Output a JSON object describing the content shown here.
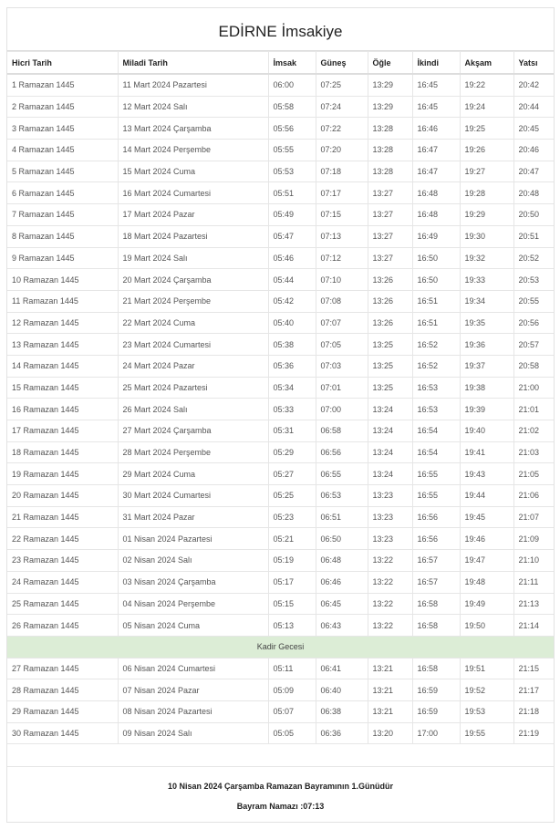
{
  "title": "EDİRNE İmsakiye",
  "columns": [
    "Hicri Tarih",
    "Miladi Tarih",
    "İmsak",
    "Güneş",
    "Öğle",
    "İkindi",
    "Akşam",
    "Yatsı"
  ],
  "rows": [
    [
      "1 Ramazan 1445",
      "11 Mart 2024 Pazartesi",
      "06:00",
      "07:25",
      "13:29",
      "16:45",
      "19:22",
      "20:42"
    ],
    [
      "2 Ramazan 1445",
      "12 Mart 2024 Salı",
      "05:58",
      "07:24",
      "13:29",
      "16:45",
      "19:24",
      "20:44"
    ],
    [
      "3 Ramazan 1445",
      "13 Mart 2024 Çarşamba",
      "05:56",
      "07:22",
      "13:28",
      "16:46",
      "19:25",
      "20:45"
    ],
    [
      "4 Ramazan 1445",
      "14 Mart 2024 Perşembe",
      "05:55",
      "07:20",
      "13:28",
      "16:47",
      "19:26",
      "20:46"
    ],
    [
      "5 Ramazan 1445",
      "15 Mart 2024 Cuma",
      "05:53",
      "07:18",
      "13:28",
      "16:47",
      "19:27",
      "20:47"
    ],
    [
      "6 Ramazan 1445",
      "16 Mart 2024 Cumartesi",
      "05:51",
      "07:17",
      "13:27",
      "16:48",
      "19:28",
      "20:48"
    ],
    [
      "7 Ramazan 1445",
      "17 Mart 2024 Pazar",
      "05:49",
      "07:15",
      "13:27",
      "16:48",
      "19:29",
      "20:50"
    ],
    [
      "8 Ramazan 1445",
      "18 Mart 2024 Pazartesi",
      "05:47",
      "07:13",
      "13:27",
      "16:49",
      "19:30",
      "20:51"
    ],
    [
      "9 Ramazan 1445",
      "19 Mart 2024 Salı",
      "05:46",
      "07:12",
      "13:27",
      "16:50",
      "19:32",
      "20:52"
    ],
    [
      "10 Ramazan 1445",
      "20 Mart 2024 Çarşamba",
      "05:44",
      "07:10",
      "13:26",
      "16:50",
      "19:33",
      "20:53"
    ],
    [
      "11 Ramazan 1445",
      "21 Mart 2024 Perşembe",
      "05:42",
      "07:08",
      "13:26",
      "16:51",
      "19:34",
      "20:55"
    ],
    [
      "12 Ramazan 1445",
      "22 Mart 2024 Cuma",
      "05:40",
      "07:07",
      "13:26",
      "16:51",
      "19:35",
      "20:56"
    ],
    [
      "13 Ramazan 1445",
      "23 Mart 2024 Cumartesi",
      "05:38",
      "07:05",
      "13:25",
      "16:52",
      "19:36",
      "20:57"
    ],
    [
      "14 Ramazan 1445",
      "24 Mart 2024 Pazar",
      "05:36",
      "07:03",
      "13:25",
      "16:52",
      "19:37",
      "20:58"
    ],
    [
      "15 Ramazan 1445",
      "25 Mart 2024 Pazartesi",
      "05:34",
      "07:01",
      "13:25",
      "16:53",
      "19:38",
      "21:00"
    ],
    [
      "16 Ramazan 1445",
      "26 Mart 2024 Salı",
      "05:33",
      "07:00",
      "13:24",
      "16:53",
      "19:39",
      "21:01"
    ],
    [
      "17 Ramazan 1445",
      "27 Mart 2024 Çarşamba",
      "05:31",
      "06:58",
      "13:24",
      "16:54",
      "19:40",
      "21:02"
    ],
    [
      "18 Ramazan 1445",
      "28 Mart 2024 Perşembe",
      "05:29",
      "06:56",
      "13:24",
      "16:54",
      "19:41",
      "21:03"
    ],
    [
      "19 Ramazan 1445",
      "29 Mart 2024 Cuma",
      "05:27",
      "06:55",
      "13:24",
      "16:55",
      "19:43",
      "21:05"
    ],
    [
      "20 Ramazan 1445",
      "30 Mart 2024 Cumartesi",
      "05:25",
      "06:53",
      "13:23",
      "16:55",
      "19:44",
      "21:06"
    ],
    [
      "21 Ramazan 1445",
      "31 Mart 2024 Pazar",
      "05:23",
      "06:51",
      "13:23",
      "16:56",
      "19:45",
      "21:07"
    ],
    [
      "22 Ramazan 1445",
      "01 Nisan 2024 Pazartesi",
      "05:21",
      "06:50",
      "13:23",
      "16:56",
      "19:46",
      "21:09"
    ],
    [
      "23 Ramazan 1445",
      "02 Nisan 2024 Salı",
      "05:19",
      "06:48",
      "13:22",
      "16:57",
      "19:47",
      "21:10"
    ],
    [
      "24 Ramazan 1445",
      "03 Nisan 2024 Çarşamba",
      "05:17",
      "06:46",
      "13:22",
      "16:57",
      "19:48",
      "21:11"
    ],
    [
      "25 Ramazan 1445",
      "04 Nisan 2024 Perşembe",
      "05:15",
      "06:45",
      "13:22",
      "16:58",
      "19:49",
      "21:13"
    ],
    [
      "26 Ramazan 1445",
      "05 Nisan 2024 Cuma",
      "05:13",
      "06:43",
      "13:22",
      "16:58",
      "19:50",
      "21:14"
    ],
    {
      "special": "Kadir Gecesi",
      "color": "#dcedd6"
    },
    [
      "27 Ramazan 1445",
      "06 Nisan 2024 Cumartesi",
      "05:11",
      "06:41",
      "13:21",
      "16:58",
      "19:51",
      "21:15"
    ],
    [
      "28 Ramazan 1445",
      "07 Nisan 2024 Pazar",
      "05:09",
      "06:40",
      "13:21",
      "16:59",
      "19:52",
      "21:17"
    ],
    [
      "29 Ramazan 1445",
      "08 Nisan 2024 Pazartesi",
      "05:07",
      "06:38",
      "13:21",
      "16:59",
      "19:53",
      "21:18"
    ],
    [
      "30 Ramazan 1445",
      "09 Nisan 2024 Salı",
      "05:05",
      "06:36",
      "13:20",
      "17:00",
      "19:55",
      "21:19"
    ]
  ],
  "footer": {
    "bayram_text": "10 Nisan 2024 Çarşamba Ramazan Bayramının 1.Günüdür",
    "namaz_text": "Bayram Namazı :07:13"
  }
}
